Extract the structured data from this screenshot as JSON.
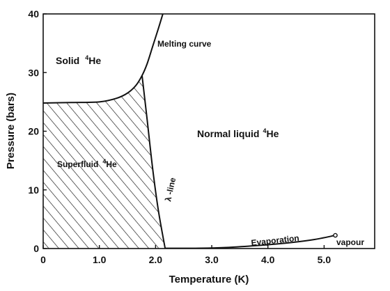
{
  "chart_data": {
    "type": "line",
    "title": "",
    "xlabel": "Temperature (K)",
    "ylabel": "Pressure (bars)",
    "xlim": [
      0,
      5.9
    ],
    "ylim": [
      0,
      40
    ],
    "x_ticks": [
      0,
      1.0,
      2.0,
      3.0,
      4.0,
      5.0
    ],
    "x_tick_labels": [
      "0",
      "1.0",
      "2.0",
      "3.0",
      "4.0",
      "5.0"
    ],
    "y_ticks": [
      0,
      10,
      20,
      30,
      40
    ],
    "y_tick_labels": [
      "0",
      "10",
      "20",
      "30",
      "40"
    ],
    "grid": false,
    "series": [
      {
        "name": "Melting curve",
        "x": [
          0.0,
          0.5,
          1.0,
          1.3,
          1.5,
          1.65,
          1.76,
          1.85,
          1.95,
          2.05,
          2.13
        ],
        "y": [
          24.8,
          24.9,
          25.0,
          25.6,
          26.5,
          27.8,
          29.5,
          31.5,
          34.5,
          37.5,
          40.0
        ]
      },
      {
        "name": "λ-line",
        "x": [
          1.76,
          1.85,
          1.95,
          2.05,
          2.17
        ],
        "y": [
          29.5,
          22.0,
          13.5,
          6.5,
          0.05
        ]
      },
      {
        "name": "Evaporation",
        "x": [
          2.17,
          2.8,
          3.3,
          3.8,
          4.3,
          4.8,
          5.2
        ],
        "y": [
          0.05,
          0.06,
          0.2,
          0.5,
          0.9,
          1.5,
          2.25
        ]
      }
    ],
    "regions": [
      "Solid",
      "Superfluid",
      "Normal liquid"
    ],
    "annotations": [
      {
        "text": "Solid",
        "sup": "4",
        "suffix": "He"
      },
      {
        "text": "Superfluid",
        "sup": "4",
        "suffix": "He"
      },
      {
        "text": "Normal liquid",
        "sup": "4",
        "suffix": "He"
      },
      {
        "text": "Melting curve"
      },
      {
        "text": "λ -line"
      },
      {
        "text": "Evaporation"
      },
      {
        "text": "vapour"
      }
    ],
    "legend": "none"
  }
}
